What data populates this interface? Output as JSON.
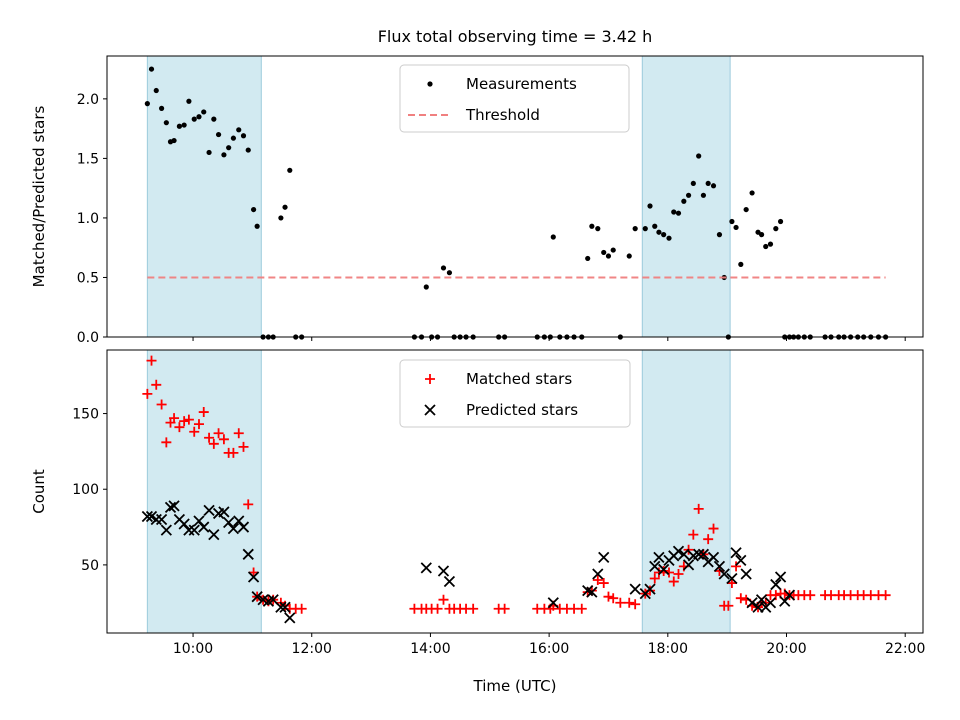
{
  "title": "Flux total observing time = 3.42 h",
  "chart_data": [
    {
      "type": "scatter",
      "ylabel": "Matched/Predicted stars",
      "xlabel": "",
      "xlim": [
        8.55,
        22.3
      ],
      "ylim": [
        0,
        2.36
      ],
      "yticks": [
        0.0,
        0.5,
        1.0,
        1.5,
        2.0
      ],
      "ytick_labels": [
        "0.0",
        "0.5",
        "1.0",
        "1.5",
        "2.0"
      ],
      "grid": false,
      "legend_position": "upper-center",
      "legend": [
        "Measurements",
        "Threshold"
      ],
      "shaded_intervals": [
        [
          9.23,
          11.15
        ],
        [
          17.57,
          19.05
        ]
      ],
      "series": [
        {
          "name": "Measurements",
          "color": "#000000",
          "marker": "dot",
          "x": [
            9.23,
            9.3,
            9.38,
            9.47,
            9.55,
            9.62,
            9.68,
            9.77,
            9.85,
            9.93,
            10.02,
            10.1,
            10.18,
            10.27,
            10.35,
            10.43,
            10.52,
            10.6,
            10.68,
            10.77,
            10.85,
            10.93,
            11.02,
            11.08,
            11.18,
            11.27,
            11.35,
            11.48,
            11.55,
            11.63,
            11.73,
            11.83,
            13.73,
            13.85,
            13.93,
            14.02,
            14.12,
            14.22,
            14.32,
            14.4,
            14.5,
            14.6,
            14.72,
            15.15,
            15.25,
            15.8,
            15.92,
            16.02,
            16.07,
            16.18,
            16.3,
            16.42,
            16.55,
            16.65,
            16.72,
            16.82,
            16.92,
            17.0,
            17.08,
            17.2,
            17.35,
            17.45,
            17.62,
            17.7,
            17.78,
            17.85,
            17.93,
            18.02,
            18.1,
            18.18,
            18.27,
            18.35,
            18.43,
            18.52,
            18.6,
            18.68,
            18.77,
            18.87,
            18.95,
            19.02,
            19.08,
            19.15,
            19.23,
            19.32,
            19.42,
            19.52,
            19.58,
            19.65,
            19.73,
            19.82,
            19.9,
            19.97,
            20.05,
            20.12,
            20.2,
            20.3,
            20.4,
            20.65,
            20.75,
            20.88,
            20.97,
            21.08,
            21.2,
            21.3,
            21.42,
            21.55,
            21.67
          ],
          "y": [
            1.96,
            2.25,
            2.07,
            1.92,
            1.8,
            1.64,
            1.65,
            1.77,
            1.78,
            1.98,
            1.83,
            1.85,
            1.89,
            1.55,
            1.83,
            1.7,
            1.53,
            1.59,
            1.67,
            1.74,
            1.69,
            1.57,
            1.07,
            0.93,
            0.0,
            0.0,
            0.0,
            1.0,
            1.09,
            1.4,
            0.0,
            0.0,
            0.0,
            0.0,
            0.42,
            0.0,
            0.0,
            0.58,
            0.54,
            0.0,
            0.0,
            0.0,
            0.0,
            0.0,
            0.0,
            0.0,
            0.0,
            0.0,
            0.84,
            0.0,
            0.0,
            0.0,
            0.0,
            0.66,
            0.93,
            0.91,
            0.71,
            0.68,
            0.73,
            0.0,
            0.68,
            0.91,
            0.91,
            1.1,
            0.93,
            0.88,
            0.86,
            0.83,
            1.05,
            1.04,
            1.14,
            1.19,
            1.29,
            1.52,
            1.19,
            1.29,
            1.27,
            0.86,
            0.5,
            0.0,
            0.97,
            0.92,
            0.61,
            1.07,
            1.21,
            0.88,
            0.86,
            0.76,
            0.78,
            0.91,
            0.97,
            0.0,
            0.0,
            0.0,
            0.0,
            0.0,
            0.0,
            0.0,
            0.0,
            0.0,
            0.0,
            0.0,
            0.0,
            0.0,
            0.0,
            0.0,
            0.0
          ]
        },
        {
          "name": "Threshold",
          "color": "#f08080",
          "style": "dashed",
          "x": [
            9.23,
            21.67
          ],
          "y": [
            0.5,
            0.5
          ]
        }
      ]
    },
    {
      "type": "scatter",
      "ylabel": "Count",
      "xlabel": "Time (UTC)",
      "xlim": [
        8.55,
        22.3
      ],
      "ylim": [
        5,
        192
      ],
      "yticks": [
        50,
        100,
        150
      ],
      "ytick_labels": [
        "50",
        "100",
        "150"
      ],
      "xticks": [
        10,
        12,
        14,
        16,
        18,
        20,
        22
      ],
      "xtick_labels": [
        "10:00",
        "12:00",
        "14:00",
        "16:00",
        "18:00",
        "20:00",
        "22:00"
      ],
      "grid": false,
      "legend_position": "upper-center",
      "legend": [
        "Matched stars",
        "Predicted stars"
      ],
      "shaded_intervals": [
        [
          9.23,
          11.15
        ],
        [
          17.57,
          19.05
        ]
      ],
      "series": [
        {
          "name": "Matched stars",
          "color": "#ff0000",
          "marker": "plus",
          "x": [
            9.23,
            9.3,
            9.38,
            9.47,
            9.55,
            9.62,
            9.68,
            9.77,
            9.85,
            9.93,
            10.02,
            10.1,
            10.18,
            10.27,
            10.35,
            10.43,
            10.52,
            10.6,
            10.68,
            10.77,
            10.85,
            10.93,
            11.02,
            11.08,
            11.18,
            11.27,
            11.35,
            11.48,
            11.55,
            11.63,
            11.73,
            11.83,
            13.73,
            13.85,
            13.93,
            14.02,
            14.12,
            14.22,
            14.32,
            14.4,
            14.5,
            14.6,
            14.72,
            15.15,
            15.25,
            15.8,
            15.92,
            16.02,
            16.07,
            16.18,
            16.3,
            16.42,
            16.55,
            16.65,
            16.72,
            16.82,
            16.92,
            17.0,
            17.08,
            17.2,
            17.35,
            17.45,
            17.62,
            17.7,
            17.78,
            17.85,
            17.93,
            18.02,
            18.1,
            18.18,
            18.27,
            18.35,
            18.43,
            18.52,
            18.6,
            18.68,
            18.77,
            18.87,
            18.95,
            19.02,
            19.08,
            19.15,
            19.23,
            19.32,
            19.42,
            19.52,
            19.58,
            19.65,
            19.73,
            19.82,
            19.9,
            19.97,
            20.05,
            20.12,
            20.2,
            20.3,
            20.4,
            20.65,
            20.75,
            20.88,
            20.97,
            21.08,
            21.2,
            21.3,
            21.42,
            21.55,
            21.67
          ],
          "y": [
            163,
            185,
            169,
            156,
            131,
            144,
            147,
            141,
            145,
            146,
            138,
            143,
            151,
            134,
            130,
            137,
            133,
            124,
            124,
            137,
            128,
            90,
            45,
            29,
            27,
            26,
            27,
            25,
            23,
            21,
            21,
            21,
            21,
            21,
            21,
            21,
            21,
            27,
            21,
            21,
            21,
            21,
            21,
            21,
            21,
            21,
            21,
            21,
            23,
            21,
            21,
            21,
            21,
            32,
            33,
            40,
            38,
            29,
            28,
            25,
            25,
            24,
            31,
            33,
            41,
            45,
            46,
            45,
            39,
            44,
            49,
            60,
            70,
            87,
            57,
            67,
            74,
            46,
            23,
            23,
            38,
            49,
            28,
            27,
            23,
            22,
            25,
            25,
            30,
            30,
            31,
            31,
            30,
            30,
            30,
            30,
            30,
            30,
            30,
            30,
            30,
            30,
            30,
            30,
            30,
            30,
            30
          ]
        },
        {
          "name": "Predicted stars",
          "color": "#000000",
          "marker": "x",
          "x": [
            9.23,
            9.3,
            9.38,
            9.47,
            9.55,
            9.62,
            9.68,
            9.77,
            9.85,
            9.93,
            10.02,
            10.1,
            10.18,
            10.27,
            10.35,
            10.43,
            10.52,
            10.6,
            10.68,
            10.77,
            10.85,
            10.93,
            11.02,
            11.08,
            11.18,
            11.27,
            11.35,
            11.48,
            11.55,
            11.63,
            13.93,
            14.22,
            14.32,
            16.07,
            16.65,
            16.72,
            16.82,
            16.92,
            17.45,
            17.62,
            17.7,
            17.78,
            17.85,
            17.93,
            18.02,
            18.1,
            18.18,
            18.27,
            18.35,
            18.43,
            18.52,
            18.6,
            18.68,
            18.77,
            18.87,
            18.95,
            19.08,
            19.15,
            19.23,
            19.32,
            19.42,
            19.52,
            19.58,
            19.65,
            19.73,
            19.82,
            19.9,
            19.97,
            20.05
          ],
          "y": [
            82,
            82,
            80,
            80,
            73,
            88,
            89,
            80,
            77,
            73,
            73,
            79,
            75,
            86,
            70,
            84,
            85,
            78,
            74,
            79,
            75,
            57,
            42,
            29,
            27,
            26,
            27,
            22,
            22,
            15,
            48,
            46,
            39,
            25,
            33,
            32,
            44,
            55,
            34,
            31,
            34,
            49,
            55,
            47,
            53,
            56,
            59,
            57,
            50,
            56,
            57,
            57,
            52,
            55,
            49,
            44,
            41,
            58,
            53,
            44,
            25,
            22,
            27,
            22,
            25,
            37,
            42,
            26,
            30
          ]
        }
      ]
    }
  ]
}
